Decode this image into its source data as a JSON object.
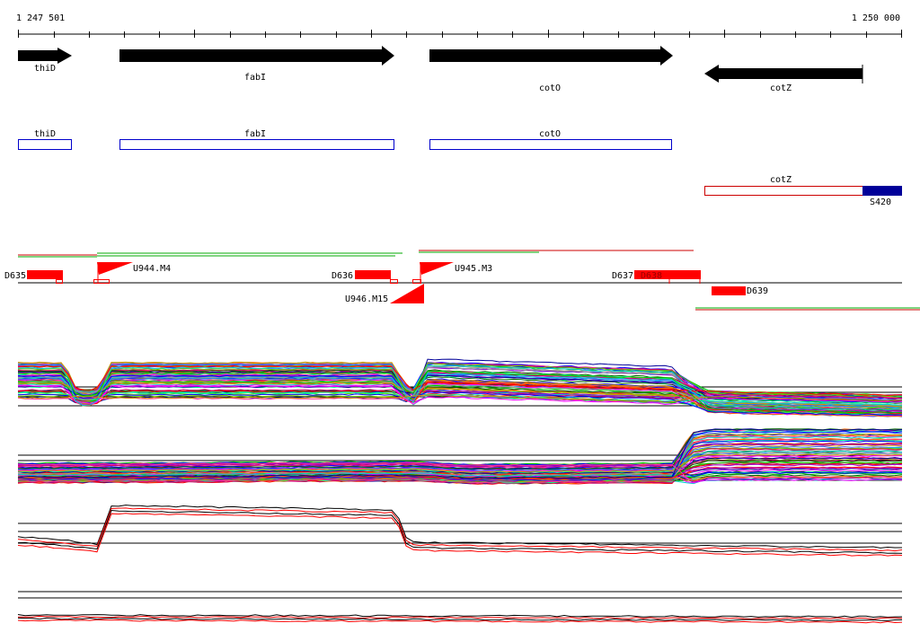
{
  "ruler": {
    "start_label": "1 247 501",
    "end_label": "1 250 000"
  },
  "genes": [
    {
      "name": "thiD",
      "strand": "+"
    },
    {
      "name": "fabI",
      "strand": "+"
    },
    {
      "name": "cotO",
      "strand": "+"
    },
    {
      "name": "cotZ",
      "strand": "-"
    }
  ],
  "cds_boxes": [
    {
      "name": "thiD"
    },
    {
      "name": "fabI"
    },
    {
      "name": "cotO"
    },
    {
      "name": "cotZ"
    }
  ],
  "region_label": "S420",
  "upshift_labels": [
    "U944.M4",
    "U945.M3",
    "U946.M15"
  ],
  "downshift_labels": [
    "D635",
    "D636",
    "D637",
    "D638",
    "D639"
  ],
  "colors": {
    "gene_arrow": "#000000",
    "cds_box": "#0000cc",
    "cotZ_box": "#cc0000",
    "region_box": "#000099",
    "feature": "#ff0000",
    "track_green": "#00aa00",
    "track_red": "#cc0000"
  },
  "expression_panels": [
    {
      "name": "multi-condition-profiles",
      "line_count": 80
    },
    {
      "name": "multi-condition-profiles-2",
      "line_count": 80
    },
    {
      "name": "replicate-profiles",
      "line_count": 4
    },
    {
      "name": "baseline-profiles",
      "line_count": 4
    }
  ]
}
